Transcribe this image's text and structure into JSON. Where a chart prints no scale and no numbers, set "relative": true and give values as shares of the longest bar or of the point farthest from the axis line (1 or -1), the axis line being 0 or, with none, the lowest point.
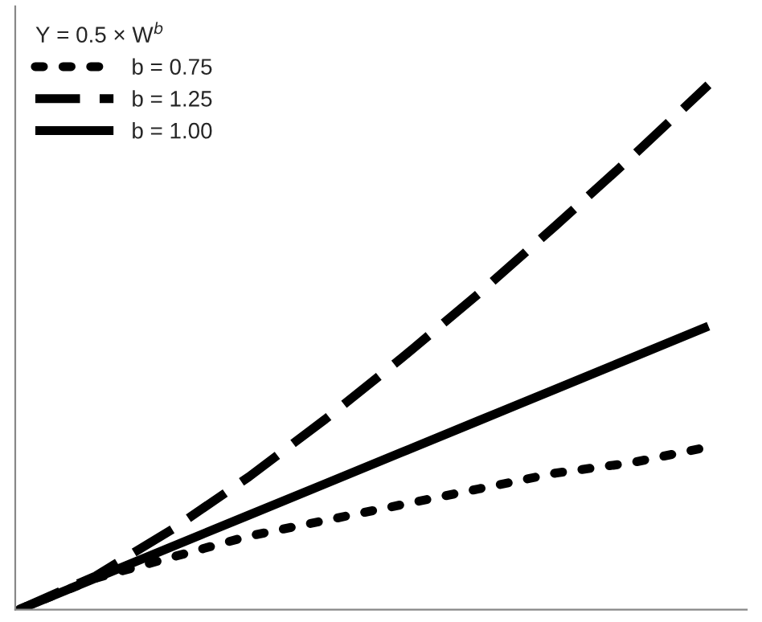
{
  "chart_data": {
    "type": "line",
    "relative": true,
    "legend_title": "Y = 0.5 × W$^{b}$",
    "legend": "top left",
    "grid": false,
    "categories": [
      null,
      null,
      null,
      null,
      null,
      null,
      null,
      null,
      null,
      null
    ],
    "series": [
      {
        "name": "b = 0.75",
        "color": "#000000",
        "line_style": "dotted",
        "values": [
          0,
          0.06,
          0.1,
          0.14,
          0.17,
          0.2,
          0.23,
          0.26,
          0.28,
          0.31
        ]
      },
      {
        "name": "b = 1.25",
        "color": "#000000",
        "line_style": "dashed",
        "values": [
          0,
          0.064,
          0.153,
          0.253,
          0.363,
          0.48,
          0.602,
          0.731,
          0.863,
          1
        ]
      },
      {
        "name": "b = 1.00",
        "color": "#000000",
        "line_style": "solid",
        "values": [
          0,
          0.06,
          0.12,
          0.18,
          0.24,
          0.3,
          0.36,
          0.42,
          0.48,
          0.54
        ]
      }
    ]
  }
}
